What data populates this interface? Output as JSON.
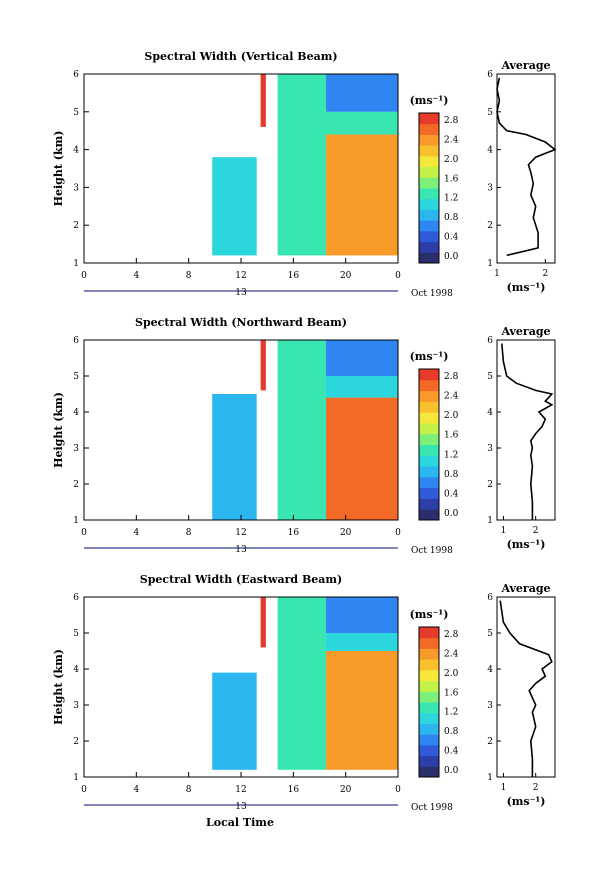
{
  "x_axis_label": "Local Time",
  "date_label": "Oct 1998",
  "day_label": "13",
  "chart_data": [
    {
      "type": "heatmap",
      "title": "Spectral Width (Vertical Beam)",
      "ylabel": "Height (km)",
      "xlim": [
        0,
        24
      ],
      "ylim": [
        1,
        6
      ],
      "xticks": [
        "0",
        "4",
        "8",
        "12",
        "16",
        "20",
        "0"
      ],
      "yticks": [
        "1",
        "2",
        "3",
        "4",
        "5",
        "6"
      ],
      "colorbar": {
        "unit": "(ms⁻¹)",
        "ticks": [
          "0.0",
          "0.4",
          "0.8",
          "1.2",
          "1.6",
          "2.0",
          "2.4",
          "2.8"
        ],
        "colors": [
          "#2a2f6b",
          "#2e3ea8",
          "#2f5ad8",
          "#2f86f2",
          "#2cb6f0",
          "#2bd6dc",
          "#39e6b2",
          "#7df07a",
          "#c4f04a",
          "#f5e83a",
          "#f9c02e",
          "#f89a2a",
          "#f26a26",
          "#e83a2c"
        ]
      },
      "regions": [
        {
          "x": [
            9.8,
            13.2
          ],
          "y": [
            1.2,
            3.8
          ],
          "value": 1.0
        },
        {
          "x": [
            13.5,
            13.9
          ],
          "y": [
            4.6,
            6.0
          ],
          "value": 2.8
        },
        {
          "x": [
            14.8,
            18.5
          ],
          "y": [
            1.2,
            6.0
          ],
          "value": 1.3
        },
        {
          "x": [
            18.5,
            24.0
          ],
          "y": [
            1.2,
            4.4
          ],
          "value": 2.4
        },
        {
          "x": [
            18.5,
            24.0
          ],
          "y": [
            4.4,
            5.0
          ],
          "value": 1.2
        },
        {
          "x": [
            18.5,
            24.0
          ],
          "y": [
            5.0,
            6.0
          ],
          "value": 0.6
        }
      ]
    },
    {
      "type": "line",
      "title": "Average",
      "xlabel": "(ms⁻¹)",
      "xlim": [
        1,
        2.2
      ],
      "ylim": [
        1,
        6
      ],
      "xticks": [
        "1",
        "2"
      ],
      "yticks": [
        "1",
        "2",
        "3",
        "4",
        "5",
        "6"
      ],
      "x": [
        1.2,
        1.85,
        1.85,
        1.75,
        1.8,
        1.7,
        1.75,
        1.7,
        1.65,
        1.8,
        2.0,
        2.2,
        2.0,
        1.6,
        1.2,
        1.05,
        1.0,
        1.05,
        1.0,
        1.05
      ],
      "y": [
        1.2,
        1.4,
        1.8,
        2.2,
        2.5,
        2.8,
        3.1,
        3.4,
        3.6,
        3.8,
        3.9,
        4.0,
        4.2,
        4.4,
        4.5,
        4.7,
        5.0,
        5.3,
        5.6,
        5.9
      ]
    },
    {
      "type": "heatmap",
      "title": "Spectral Width (Northward Beam)",
      "ylabel": "Height (km)",
      "xlim": [
        0,
        24
      ],
      "ylim": [
        1,
        6
      ],
      "xticks": [
        "0",
        "4",
        "8",
        "12",
        "16",
        "20",
        "0"
      ],
      "yticks": [
        "1",
        "2",
        "3",
        "4",
        "5",
        "6"
      ],
      "colorbar": {
        "unit": "(ms⁻¹)",
        "ticks": [
          "0.0",
          "0.4",
          "0.8",
          "1.2",
          "1.6",
          "2.0",
          "2.4",
          "2.8"
        ],
        "colors": [
          "#2a2f6b",
          "#2e3ea8",
          "#2f5ad8",
          "#2f86f2",
          "#2cb6f0",
          "#2bd6dc",
          "#39e6b2",
          "#7df07a",
          "#c4f04a",
          "#f5e83a",
          "#f9c02e",
          "#f89a2a",
          "#f26a26",
          "#e83a2c"
        ]
      },
      "regions": [
        {
          "x": [
            9.8,
            13.2
          ],
          "y": [
            1.0,
            4.5
          ],
          "value": 0.9
        },
        {
          "x": [
            13.5,
            13.9
          ],
          "y": [
            4.6,
            6.0
          ],
          "value": 2.8
        },
        {
          "x": [
            14.8,
            18.5
          ],
          "y": [
            1.0,
            6.0
          ],
          "value": 1.2
        },
        {
          "x": [
            18.5,
            24.0
          ],
          "y": [
            1.0,
            4.4
          ],
          "value": 2.5
        },
        {
          "x": [
            18.5,
            24.0
          ],
          "y": [
            4.4,
            5.0
          ],
          "value": 1.1
        },
        {
          "x": [
            18.5,
            24.0
          ],
          "y": [
            5.0,
            6.0
          ],
          "value": 0.6
        }
      ]
    },
    {
      "type": "line",
      "title": "Average",
      "xlabel": "(ms⁻¹)",
      "xlim": [
        0.8,
        2.6
      ],
      "ylim": [
        1,
        6
      ],
      "xticks": [
        "1",
        "2"
      ],
      "yticks": [
        "1",
        "2",
        "3",
        "4",
        "5",
        "6"
      ],
      "x": [
        1.9,
        1.9,
        1.85,
        1.9,
        1.85,
        1.9,
        1.85,
        2.0,
        2.2,
        2.3,
        2.1,
        2.5,
        2.3,
        2.5,
        2.0,
        1.4,
        1.1,
        1.0,
        0.95
      ],
      "y": [
        1.0,
        1.5,
        2.0,
        2.5,
        2.8,
        3.0,
        3.2,
        3.4,
        3.6,
        3.8,
        4.0,
        4.2,
        4.3,
        4.5,
        4.6,
        4.8,
        5.0,
        5.4,
        5.9
      ]
    },
    {
      "type": "heatmap",
      "title": "Spectral Width (Eastward Beam)",
      "ylabel": "Height (km)",
      "xlim": [
        0,
        24
      ],
      "ylim": [
        1,
        6
      ],
      "xticks": [
        "0",
        "4",
        "8",
        "12",
        "16",
        "20",
        "0"
      ],
      "yticks": [
        "1",
        "2",
        "3",
        "4",
        "5",
        "6"
      ],
      "colorbar": {
        "unit": "(ms⁻¹)",
        "ticks": [
          "0.0",
          "0.4",
          "0.8",
          "1.2",
          "1.6",
          "2.0",
          "2.4",
          "2.8"
        ],
        "colors": [
          "#2a2f6b",
          "#2e3ea8",
          "#2f5ad8",
          "#2f86f2",
          "#2cb6f0",
          "#2bd6dc",
          "#39e6b2",
          "#7df07a",
          "#c4f04a",
          "#f5e83a",
          "#f9c02e",
          "#f89a2a",
          "#f26a26",
          "#e83a2c"
        ]
      },
      "regions": [
        {
          "x": [
            9.8,
            13.2
          ],
          "y": [
            1.2,
            3.9
          ],
          "value": 0.9
        },
        {
          "x": [
            13.5,
            13.9
          ],
          "y": [
            4.6,
            6.0
          ],
          "value": 2.8
        },
        {
          "x": [
            14.8,
            18.5
          ],
          "y": [
            1.2,
            6.0
          ],
          "value": 1.2
        },
        {
          "x": [
            18.5,
            24.0
          ],
          "y": [
            1.2,
            4.5
          ],
          "value": 2.4
        },
        {
          "x": [
            18.5,
            24.0
          ],
          "y": [
            4.5,
            5.0
          ],
          "value": 1.1
        },
        {
          "x": [
            18.5,
            24.0
          ],
          "y": [
            5.0,
            6.0
          ],
          "value": 0.6
        }
      ]
    },
    {
      "type": "line",
      "title": "Average",
      "xlabel": "(ms⁻¹)",
      "xlim": [
        0.8,
        2.6
      ],
      "ylim": [
        1,
        6
      ],
      "xticks": [
        "1",
        "2"
      ],
      "yticks": [
        "1",
        "2",
        "3",
        "4",
        "5",
        "6"
      ],
      "x": [
        1.9,
        1.9,
        1.85,
        2.0,
        1.9,
        2.0,
        1.9,
        1.8,
        2.0,
        2.3,
        2.2,
        2.5,
        2.4,
        2.1,
        1.5,
        1.2,
        1.0,
        0.95,
        0.9
      ],
      "y": [
        1.0,
        1.5,
        2.0,
        2.4,
        2.8,
        3.0,
        3.2,
        3.4,
        3.6,
        3.8,
        4.0,
        4.2,
        4.4,
        4.5,
        4.7,
        5.0,
        5.3,
        5.6,
        5.9
      ]
    }
  ]
}
